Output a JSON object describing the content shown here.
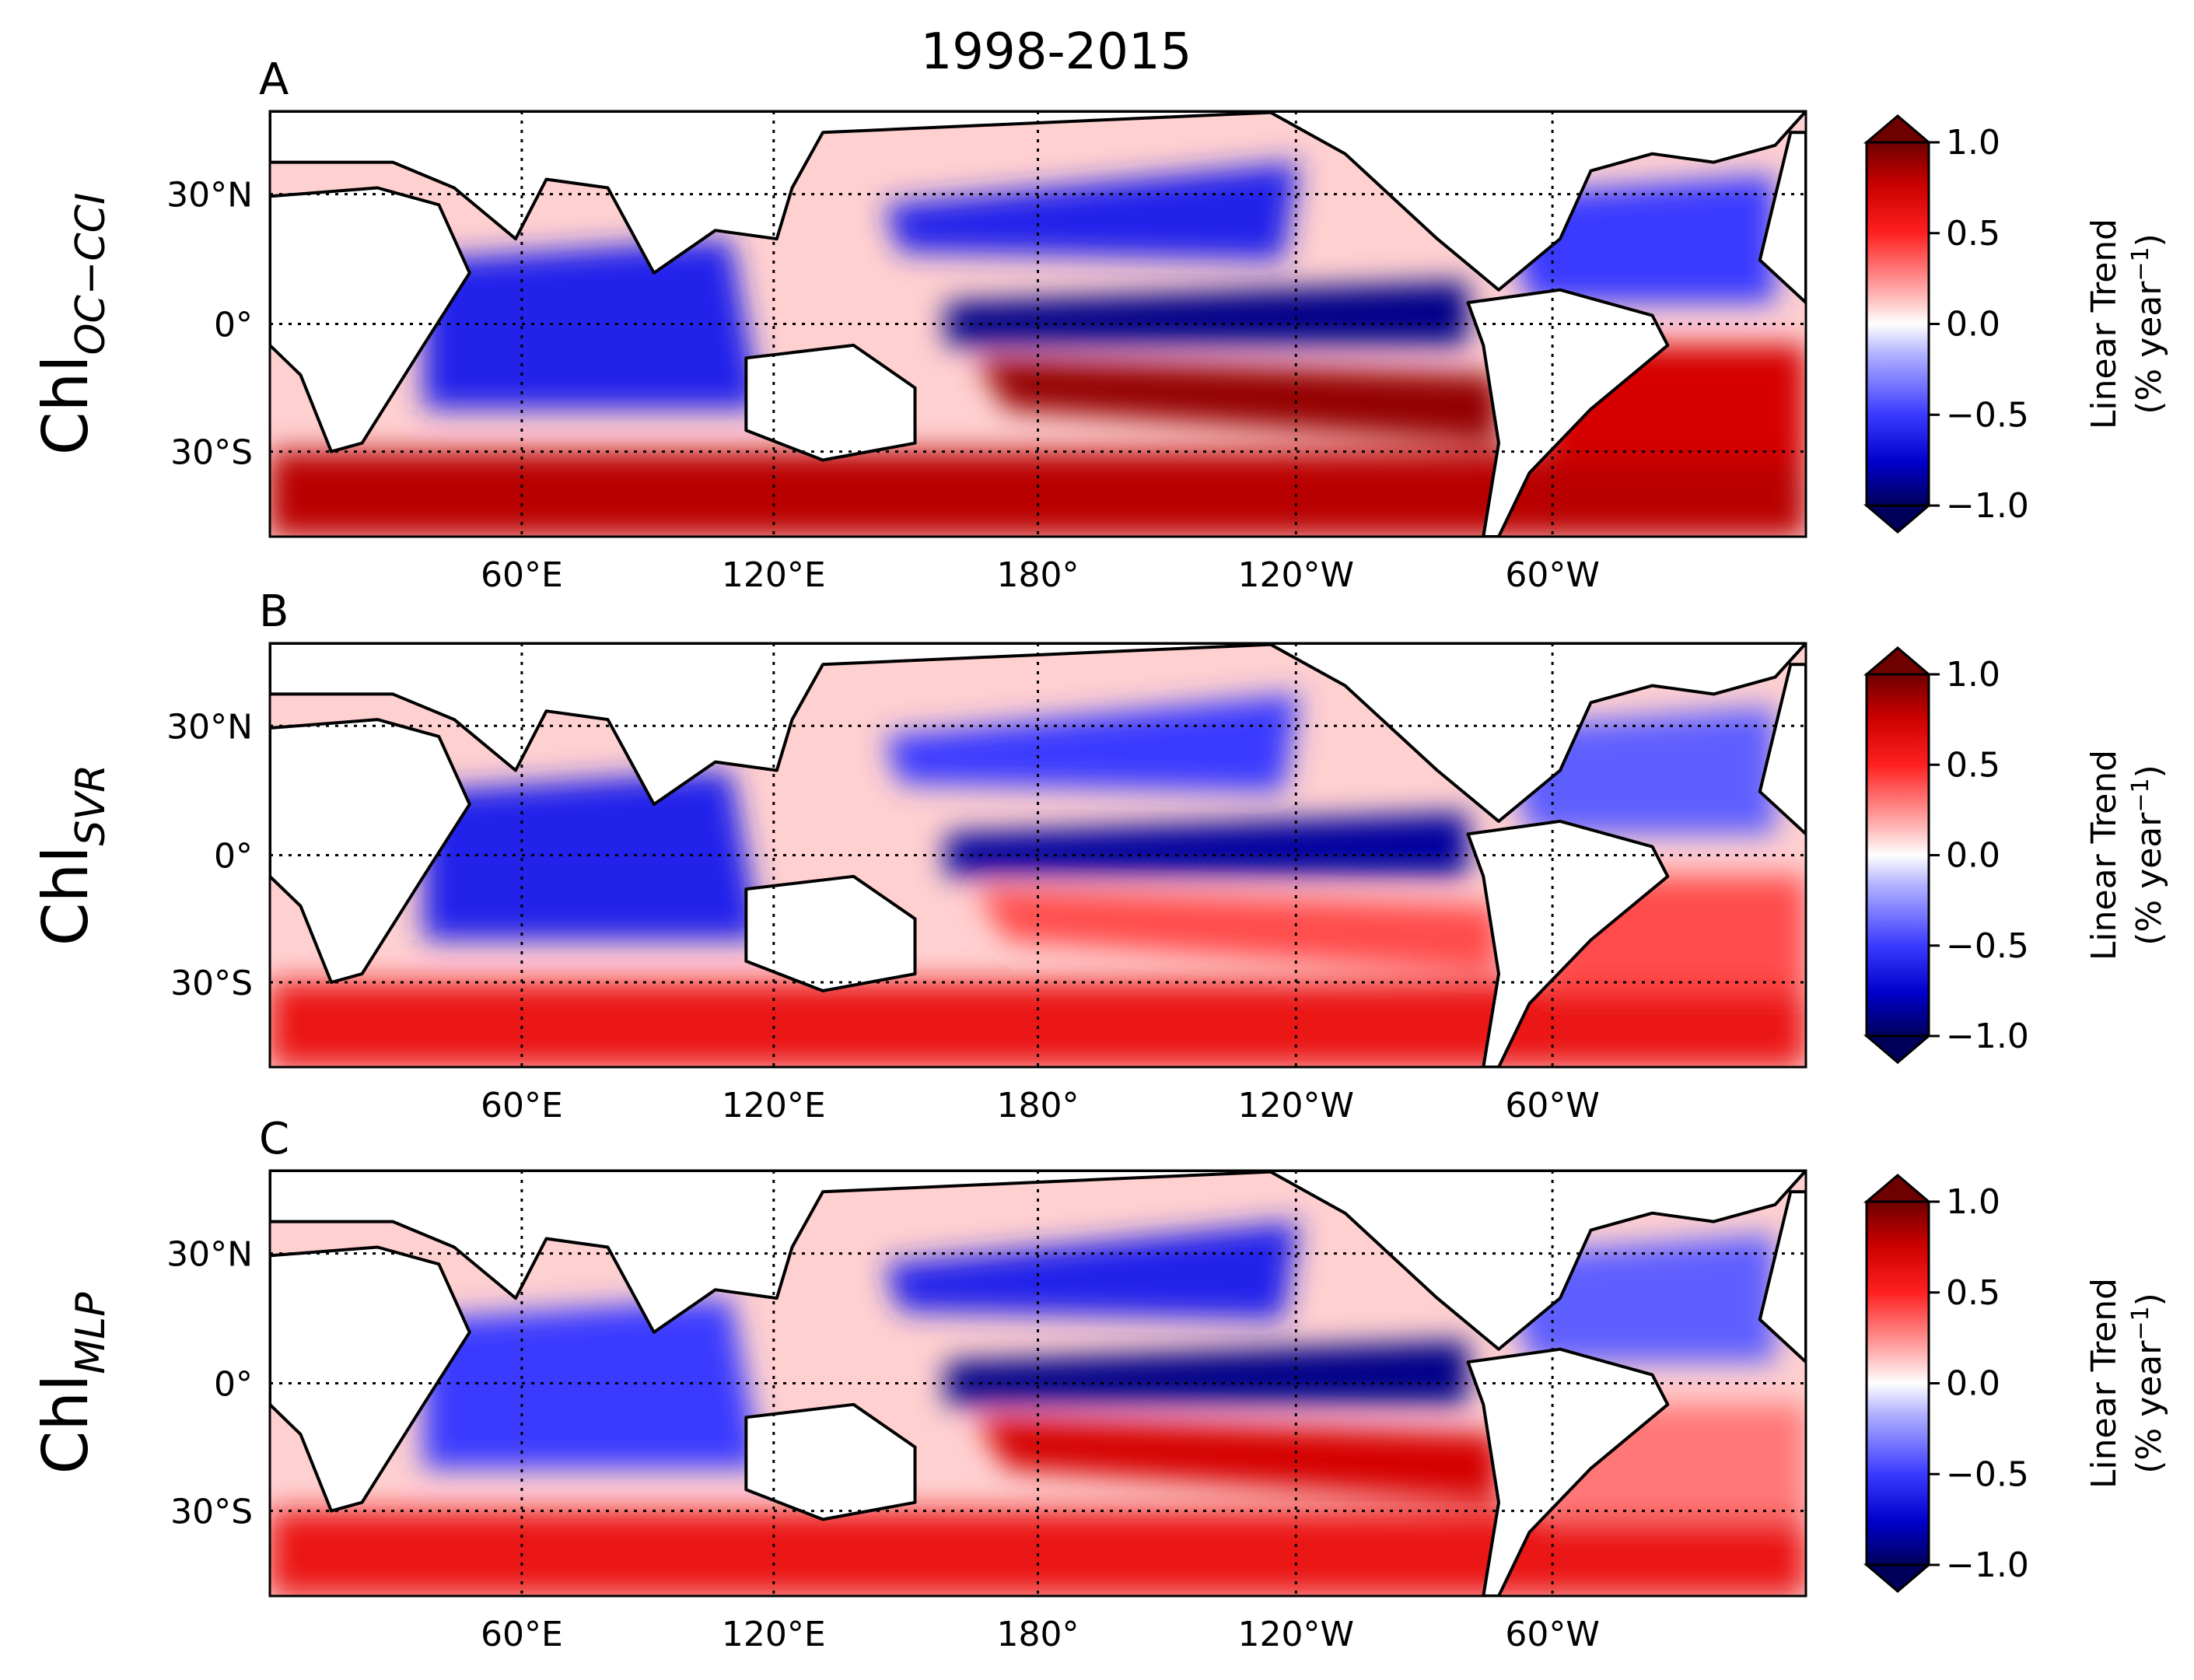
{
  "figure": {
    "title": "1998-2015"
  },
  "chart_data": [
    {
      "type": "heatmap",
      "panel": "A",
      "ylabel_main": "Chl",
      "ylabel_sub": "OC−CCI",
      "x_ticks": [
        "60°E",
        "120°E",
        "180°",
        "120°W",
        "60°W"
      ],
      "y_ticks": [
        "30°N",
        "0°",
        "30°S"
      ],
      "colorbar": {
        "label_line1": "Linear Trend",
        "label_line2": "(% year",
        "label_sup": "−1",
        "label_close": ")",
        "ticks": [
          "1.0",
          "0.5",
          "0.0",
          "−0.5",
          "−1.0"
        ],
        "range": [
          -1.0,
          1.0
        ]
      },
      "trend_regions": [
        {
          "name": "north-pacific-subtropical-band",
          "value": -0.6
        },
        {
          "name": "equatorial-pacific-band",
          "value": -0.9
        },
        {
          "name": "south-pacific-subtropical-band",
          "value": 0.9
        },
        {
          "name": "southern-ocean",
          "value": 0.8
        },
        {
          "name": "indian-ocean",
          "value": -0.6
        },
        {
          "name": "north-atlantic-gyre",
          "value": -0.5
        },
        {
          "name": "south-atlantic",
          "value": 0.7
        }
      ]
    },
    {
      "type": "heatmap",
      "panel": "B",
      "ylabel_main": "Chl",
      "ylabel_sub": "SVR",
      "x_ticks": [
        "60°E",
        "120°E",
        "180°",
        "120°W",
        "60°W"
      ],
      "y_ticks": [
        "30°N",
        "0°",
        "30°S"
      ],
      "colorbar": {
        "label_line1": "Linear Trend",
        "label_line2": "(% year",
        "label_sup": "−1",
        "label_close": ")",
        "ticks": [
          "1.0",
          "0.5",
          "0.0",
          "−0.5",
          "−1.0"
        ],
        "range": [
          -1.0,
          1.0
        ]
      },
      "trend_regions": [
        {
          "name": "north-pacific-subtropical-band",
          "value": -0.5
        },
        {
          "name": "equatorial-pacific-band",
          "value": -0.85
        },
        {
          "name": "south-pacific-subtropical-band",
          "value": 0.4
        },
        {
          "name": "southern-ocean",
          "value": 0.6
        },
        {
          "name": "indian-ocean",
          "value": -0.6
        },
        {
          "name": "north-atlantic-gyre",
          "value": -0.4
        },
        {
          "name": "south-atlantic",
          "value": 0.4
        }
      ]
    },
    {
      "type": "heatmap",
      "panel": "C",
      "ylabel_main": "Chl",
      "ylabel_sub": "MLP",
      "x_ticks": [
        "60°E",
        "120°E",
        "180°",
        "120°W",
        "60°W"
      ],
      "y_ticks": [
        "30°N",
        "0°",
        "30°S"
      ],
      "colorbar": {
        "label_line1": "Linear Trend",
        "label_line2": "(% year",
        "label_sup": "−1",
        "label_close": ")",
        "ticks": [
          "1.0",
          "0.5",
          "0.0",
          "−0.5",
          "−1.0"
        ],
        "range": [
          -1.0,
          1.0
        ]
      },
      "trend_regions": [
        {
          "name": "north-pacific-subtropical-band",
          "value": -0.6
        },
        {
          "name": "equatorial-pacific-band",
          "value": -0.9
        },
        {
          "name": "south-pacific-subtropical-band",
          "value": 0.7
        },
        {
          "name": "southern-ocean",
          "value": 0.6
        },
        {
          "name": "indian-ocean",
          "value": -0.5
        },
        {
          "name": "north-atlantic-gyre",
          "value": -0.4
        },
        {
          "name": "south-atlantic",
          "value": 0.3
        }
      ]
    }
  ]
}
